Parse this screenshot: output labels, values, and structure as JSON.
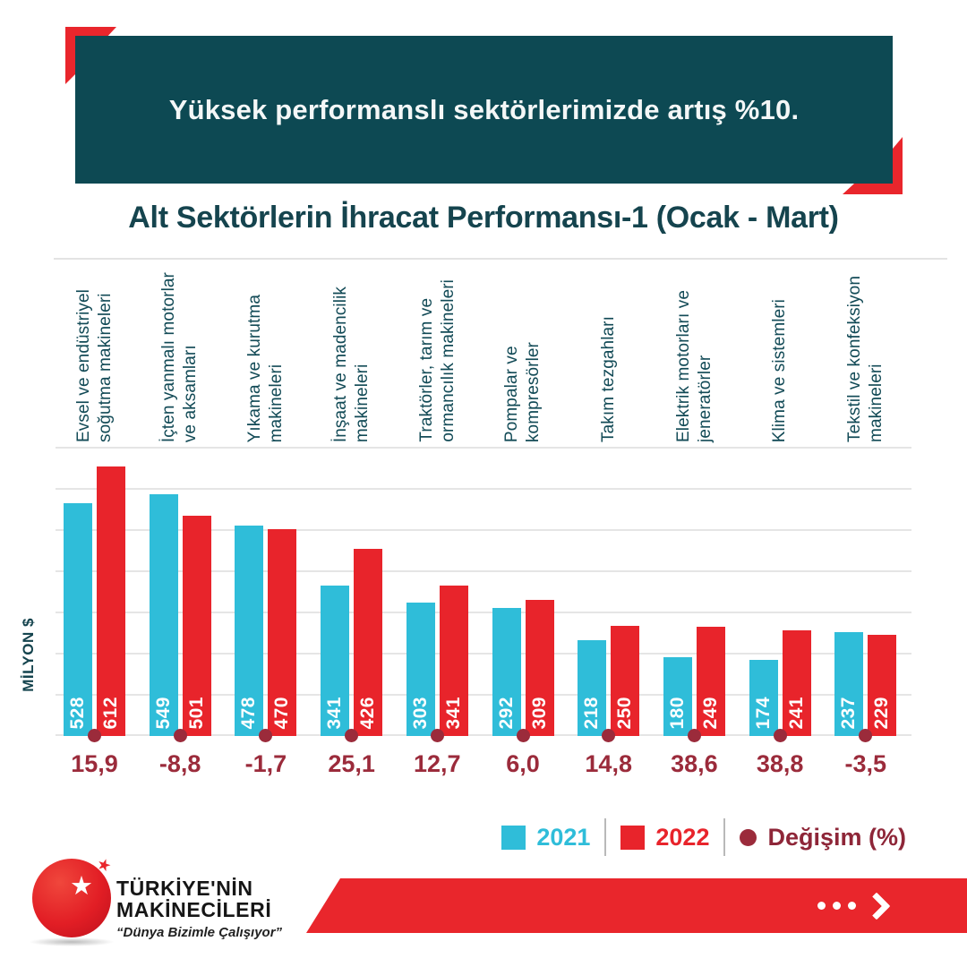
{
  "banner": {
    "headline": "Yüksek performanslı sektörlerimizde artış %10."
  },
  "title": "Alt Sektörlerin İhracat Performansı-1 (Ocak - Mart)",
  "y_axis_label": "MİLYON $",
  "legend": [
    {
      "label": "2021",
      "color": "#2FBDD9",
      "shape": "square"
    },
    {
      "label": "2022",
      "color": "#E8242B",
      "shape": "square"
    },
    {
      "label": "Değişim (%)",
      "color": "#9B2B3B",
      "shape": "circle"
    }
  ],
  "chart_data": {
    "type": "bar",
    "title": "Alt Sektörlerin İhracat Performansı-1 (Ocak - Mart)",
    "ylabel": "MİLYON $",
    "ylim": [
      0,
      655
    ],
    "grid": true,
    "legend_position": "bottom-right",
    "categories": [
      [
        "Evsel ve endüstriyel",
        "soğutma makineleri"
      ],
      [
        "İçten yanmalı motorlar",
        "ve aksamları"
      ],
      [
        "Yıkama ve kurutma",
        "makineleri"
      ],
      [
        "İnşaat ve madencilik",
        "makineleri"
      ],
      [
        "Traktörler, tarım ve",
        "ormancılık makineleri"
      ],
      [
        "Pompalar ve",
        "kompresörler"
      ],
      [
        "Takım tezgahları"
      ],
      [
        "Elektrik motorları ve",
        "jeneratörler"
      ],
      [
        "Klima ve sistemleri"
      ],
      [
        "Tekstil ve konfeksiyon",
        "makineleri"
      ]
    ],
    "series": [
      {
        "name": "2021",
        "color": "#2FBDD9",
        "values": [
          528,
          549,
          478,
          341,
          303,
          292,
          218,
          180,
          174,
          237
        ]
      },
      {
        "name": "2022",
        "color": "#E8242B",
        "values": [
          612,
          501,
          470,
          426,
          341,
          309,
          250,
          249,
          241,
          229
        ]
      }
    ],
    "change_series": {
      "name": "Değişim (%)",
      "color": "#9B2B3B",
      "values_display": [
        "15,9",
        "-8,8",
        "-1,7",
        "25,1",
        "12,7",
        "6,0",
        "14,8",
        "38,6",
        "38,8",
        "-3,5"
      ]
    }
  },
  "footer": {
    "logo": {
      "line1": "TÜRKİYE'NİN",
      "line2": "MAKİNECİLERİ",
      "slogan": "“Dünya Bizimle Çalışıyor”",
      "star_icon": "★"
    },
    "cta_icon": "dots-arrow-icon"
  },
  "colors": {
    "banner_bg": "#0D4953",
    "accent_red": "#E9262C",
    "teal_text": "#15444E",
    "bar_2021": "#2FBDD9",
    "bar_2022": "#E8242B",
    "change_maroon": "#9B2B3B",
    "gridline": "#E5E5E5"
  }
}
